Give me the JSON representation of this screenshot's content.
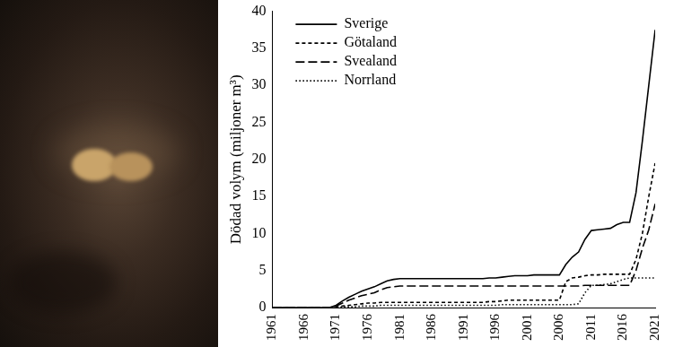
{
  "chart_data": {
    "type": "line",
    "y_label": "Dödad volym (miljoner m³)",
    "x": [
      1961,
      1962,
      1963,
      1964,
      1965,
      1966,
      1967,
      1968,
      1969,
      1970,
      1971,
      1972,
      1973,
      1974,
      1975,
      1976,
      1977,
      1978,
      1979,
      1980,
      1981,
      1982,
      1983,
      1984,
      1985,
      1986,
      1987,
      1988,
      1989,
      1990,
      1991,
      1992,
      1993,
      1994,
      1995,
      1996,
      1997,
      1998,
      1999,
      2000,
      2001,
      2002,
      2003,
      2004,
      2005,
      2006,
      2007,
      2008,
      2009,
      2010,
      2011,
      2012,
      2013,
      2014,
      2015,
      2016,
      2017,
      2018,
      2019,
      2020,
      2021
    ],
    "series": [
      {
        "name": "Sverige",
        "color": "#000000",
        "line_style": "solid",
        "values": [
          0,
          0,
          0,
          0,
          0,
          0,
          0,
          0,
          0,
          0,
          0.3,
          0.9,
          1.4,
          1.8,
          2.2,
          2.5,
          2.8,
          3.2,
          3.6,
          3.8,
          3.9,
          3.9,
          3.9,
          3.9,
          3.9,
          3.9,
          3.9,
          3.9,
          3.9,
          3.9,
          3.9,
          3.9,
          3.9,
          3.9,
          4.0,
          4.0,
          4.1,
          4.2,
          4.3,
          4.3,
          4.3,
          4.4,
          4.4,
          4.4,
          4.4,
          4.4,
          5.8,
          6.8,
          7.5,
          9.2,
          10.4,
          10.5,
          10.6,
          10.7,
          11.2,
          11.5,
          11.5,
          15.5,
          22.5,
          30.0,
          37.5
        ]
      },
      {
        "name": "Götaland",
        "color": "#000000",
        "line_style": "dashed",
        "values": [
          0,
          0,
          0,
          0,
          0,
          0,
          0,
          0,
          0,
          0,
          0.1,
          0.2,
          0.3,
          0.4,
          0.5,
          0.6,
          0.6,
          0.7,
          0.7,
          0.7,
          0.7,
          0.7,
          0.7,
          0.7,
          0.7,
          0.7,
          0.7,
          0.7,
          0.7,
          0.7,
          0.7,
          0.7,
          0.7,
          0.7,
          0.8,
          0.8,
          0.9,
          1.0,
          1.0,
          1.0,
          1.0,
          1.0,
          1.0,
          1.0,
          1.0,
          1.0,
          3.5,
          4.0,
          4.1,
          4.3,
          4.4,
          4.4,
          4.5,
          4.5,
          4.5,
          4.5,
          4.5,
          6.5,
          10.0,
          15.0,
          19.5
        ]
      },
      {
        "name": "Svealand",
        "color": "#000000",
        "line_style": "longdash",
        "values": [
          0,
          0,
          0,
          0,
          0,
          0,
          0,
          0,
          0,
          0,
          0.2,
          0.6,
          1.0,
          1.3,
          1.6,
          1.8,
          2.0,
          2.4,
          2.7,
          2.8,
          2.9,
          2.9,
          2.9,
          2.9,
          2.9,
          2.9,
          2.9,
          2.9,
          2.9,
          2.9,
          2.9,
          2.9,
          2.9,
          2.9,
          2.9,
          2.9,
          2.9,
          2.9,
          2.9,
          2.9,
          2.9,
          2.9,
          2.9,
          2.9,
          2.9,
          2.9,
          2.9,
          2.9,
          2.9,
          3.0,
          3.0,
          3.0,
          3.0,
          3.0,
          3.0,
          3.0,
          3.0,
          5.0,
          8.0,
          10.5,
          14.0
        ]
      },
      {
        "name": "Norrland",
        "color": "#000000",
        "line_style": "dotted",
        "values": [
          0,
          0,
          0,
          0,
          0,
          0,
          0,
          0,
          0,
          0,
          0,
          0.1,
          0.1,
          0.1,
          0.2,
          0.2,
          0.2,
          0.3,
          0.3,
          0.3,
          0.3,
          0.3,
          0.3,
          0.3,
          0.3,
          0.3,
          0.3,
          0.3,
          0.3,
          0.3,
          0.3,
          0.3,
          0.3,
          0.3,
          0.3,
          0.3,
          0.4,
          0.4,
          0.4,
          0.4,
          0.4,
          0.4,
          0.4,
          0.4,
          0.4,
          0.4,
          0.4,
          0.4,
          0.5,
          2.0,
          3.0,
          3.0,
          3.1,
          3.2,
          3.5,
          3.8,
          4.0,
          4.0,
          4.0,
          4.0,
          4.0
        ]
      }
    ],
    "xlim": [
      1961,
      2021
    ],
    "xticks": [
      1961,
      1966,
      1971,
      1976,
      1981,
      1986,
      1991,
      1996,
      2001,
      2006,
      2011,
      2016,
      2021
    ],
    "ylim": [
      0,
      40
    ],
    "yticks": [
      0,
      5,
      10,
      15,
      20,
      25,
      30,
      35,
      40
    ],
    "grid": false,
    "legend": "upper left"
  }
}
